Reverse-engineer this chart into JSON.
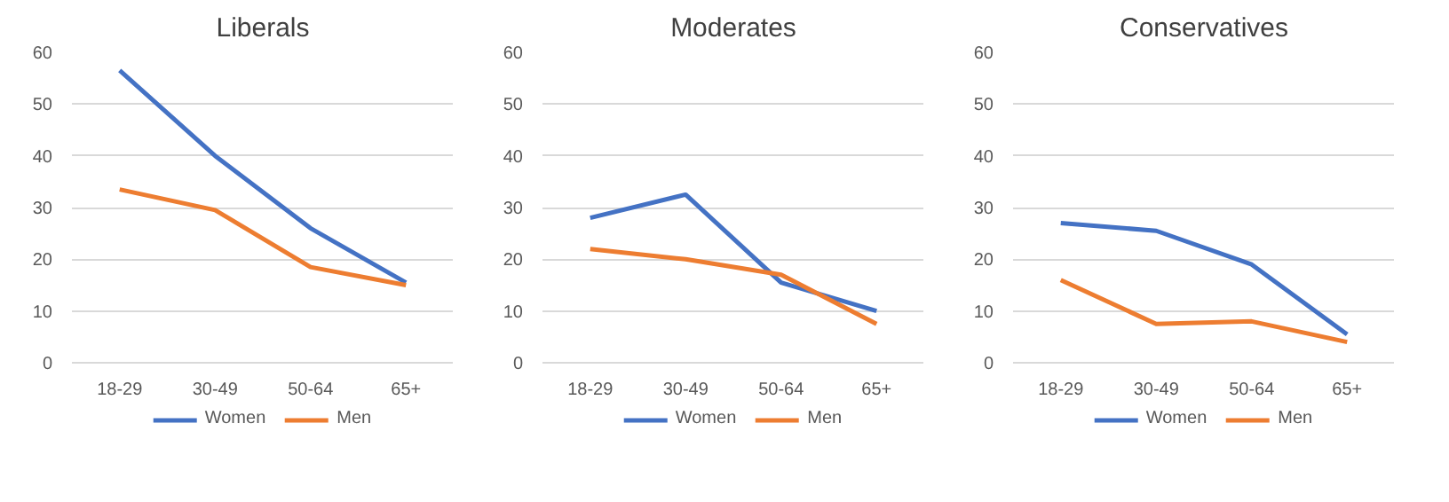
{
  "chart_data": [
    {
      "type": "line",
      "title": "Liberals",
      "categories": [
        "18-29",
        "30-49",
        "50-64",
        "65+"
      ],
      "ylim": [
        0,
        60
      ],
      "yticks": [
        0,
        10,
        20,
        30,
        40,
        50,
        60
      ],
      "grid": "y",
      "legend": "bottom",
      "series": [
        {
          "name": "Women",
          "color": "#4472c4",
          "values": [
            56.5,
            40,
            26,
            15.5
          ]
        },
        {
          "name": "Men",
          "color": "#ed7d31",
          "values": [
            33.5,
            29.5,
            18.5,
            15
          ]
        }
      ]
    },
    {
      "type": "line",
      "title": "Moderates",
      "categories": [
        "18-29",
        "30-49",
        "50-64",
        "65+"
      ],
      "ylim": [
        0,
        60
      ],
      "yticks": [
        0,
        10,
        20,
        30,
        40,
        50,
        60
      ],
      "grid": "y",
      "legend": "bottom",
      "series": [
        {
          "name": "Women",
          "color": "#4472c4",
          "values": [
            28,
            32.5,
            15.5,
            10
          ]
        },
        {
          "name": "Men",
          "color": "#ed7d31",
          "values": [
            22,
            20,
            17,
            7.5
          ]
        }
      ]
    },
    {
      "type": "line",
      "title": "Conservatives",
      "categories": [
        "18-29",
        "30-49",
        "50-64",
        "65+"
      ],
      "ylim": [
        0,
        60
      ],
      "yticks": [
        0,
        10,
        20,
        30,
        40,
        50,
        60
      ],
      "grid": "y",
      "legend": "bottom",
      "series": [
        {
          "name": "Women",
          "color": "#4472c4",
          "values": [
            27,
            25.5,
            19,
            5.5
          ]
        },
        {
          "name": "Men",
          "color": "#ed7d31",
          "values": [
            16,
            7.5,
            8,
            4
          ]
        }
      ]
    }
  ]
}
